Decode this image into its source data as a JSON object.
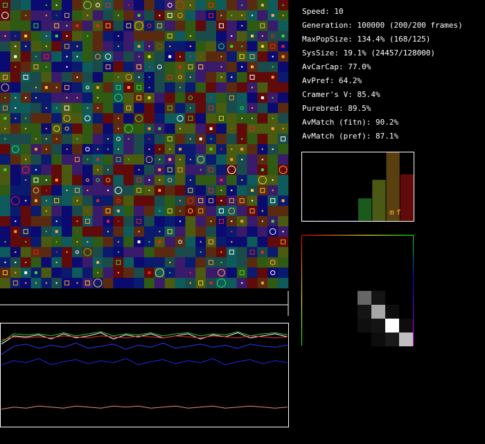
{
  "stats": [
    "Speed: 10",
    "Generation: 100000 (200/200 frames)",
    "MaxPopSize: 134.4% (168/125)",
    "SysSize: 19.1% (24457/128000)",
    "AvCarCap: 77.0%",
    "AvPref: 64.2%",
    "Cramer's V: 85.4%",
    "Purebred: 89.5%",
    "AvMatch (fitn): 90.2%",
    "AvMatch (pref): 87.1%"
  ],
  "histogram": {
    "values": [
      1,
      1,
      1,
      1,
      33,
      60,
      100,
      68
    ],
    "ylim": [
      0,
      100
    ],
    "colors": [
      "#202060",
      "#202060",
      "#202060",
      "#202060",
      "#1a5a1a",
      "#4a5a14",
      "#5a4010",
      "#600a0a"
    ],
    "labels": [
      "m",
      "f"
    ]
  },
  "matrix": {
    "values": [
      [
        0,
        0,
        0,
        0,
        0,
        0,
        0,
        0
      ],
      [
        0,
        0,
        0,
        0,
        0,
        0,
        0,
        0
      ],
      [
        0,
        0,
        0,
        0,
        0,
        0,
        0,
        0
      ],
      [
        0,
        0,
        0,
        0,
        0,
        0,
        0,
        0
      ],
      [
        0,
        0,
        0,
        0,
        0.4,
        0.08,
        0,
        0
      ],
      [
        0,
        0,
        0,
        0,
        0.08,
        0.65,
        0.05,
        0
      ],
      [
        0,
        0,
        0,
        0,
        0.06,
        0.08,
        1,
        0.05
      ],
      [
        0,
        0,
        0,
        0,
        0,
        0.05,
        0.1,
        0.75
      ]
    ]
  },
  "monitor": {
    "ylim": [
      0,
      1
    ],
    "series": [
      {
        "color": "#ffffff",
        "values": [
          0.8,
          0.88,
          0.87,
          0.89,
          0.85,
          0.9,
          0.86,
          0.88,
          0.91,
          0.85,
          0.89,
          0.87,
          0.9,
          0.86,
          0.88,
          0.9,
          0.85,
          0.89,
          0.87,
          0.91,
          0.86,
          0.88,
          0.9,
          0.87
        ]
      },
      {
        "color": "#33cc33",
        "values": [
          0.82,
          0.9,
          0.89,
          0.9,
          0.88,
          0.91,
          0.88,
          0.9,
          0.92,
          0.88,
          0.9,
          0.89,
          0.91,
          0.88,
          0.9,
          0.91,
          0.88,
          0.9,
          0.89,
          0.92,
          0.88,
          0.9,
          0.91,
          0.89
        ]
      },
      {
        "color": "#ee3333",
        "values": [
          0.84,
          0.87,
          0.86,
          0.87,
          0.86,
          0.88,
          0.87,
          0.86,
          0.88,
          0.87,
          0.86,
          0.88,
          0.87,
          0.86,
          0.88,
          0.87,
          0.86,
          0.88,
          0.87,
          0.86,
          0.88,
          0.87,
          0.86,
          0.87
        ]
      },
      {
        "color": "#3333ff",
        "values": [
          0.7,
          0.78,
          0.8,
          0.76,
          0.79,
          0.77,
          0.81,
          0.76,
          0.78,
          0.8,
          0.75,
          0.79,
          0.77,
          0.81,
          0.76,
          0.78,
          0.8,
          0.77,
          0.79,
          0.76,
          0.8,
          0.78,
          0.77,
          0.79
        ]
      },
      {
        "color": "#2222ee",
        "values": [
          0.6,
          0.64,
          0.62,
          0.66,
          0.6,
          0.63,
          0.65,
          0.61,
          0.64,
          0.62,
          0.66,
          0.6,
          0.63,
          0.65,
          0.61,
          0.64,
          0.62,
          0.66,
          0.6,
          0.63,
          0.65,
          0.61,
          0.64,
          0.62
        ]
      },
      {
        "color": "#ee8888",
        "values": [
          0.17,
          0.19,
          0.18,
          0.2,
          0.19,
          0.18,
          0.2,
          0.19,
          0.18,
          0.2,
          0.19,
          0.2,
          0.18,
          0.19,
          0.2,
          0.18,
          0.19,
          0.2,
          0.18,
          0.19,
          0.2,
          0.19,
          0.18,
          0.19
        ]
      }
    ]
  }
}
